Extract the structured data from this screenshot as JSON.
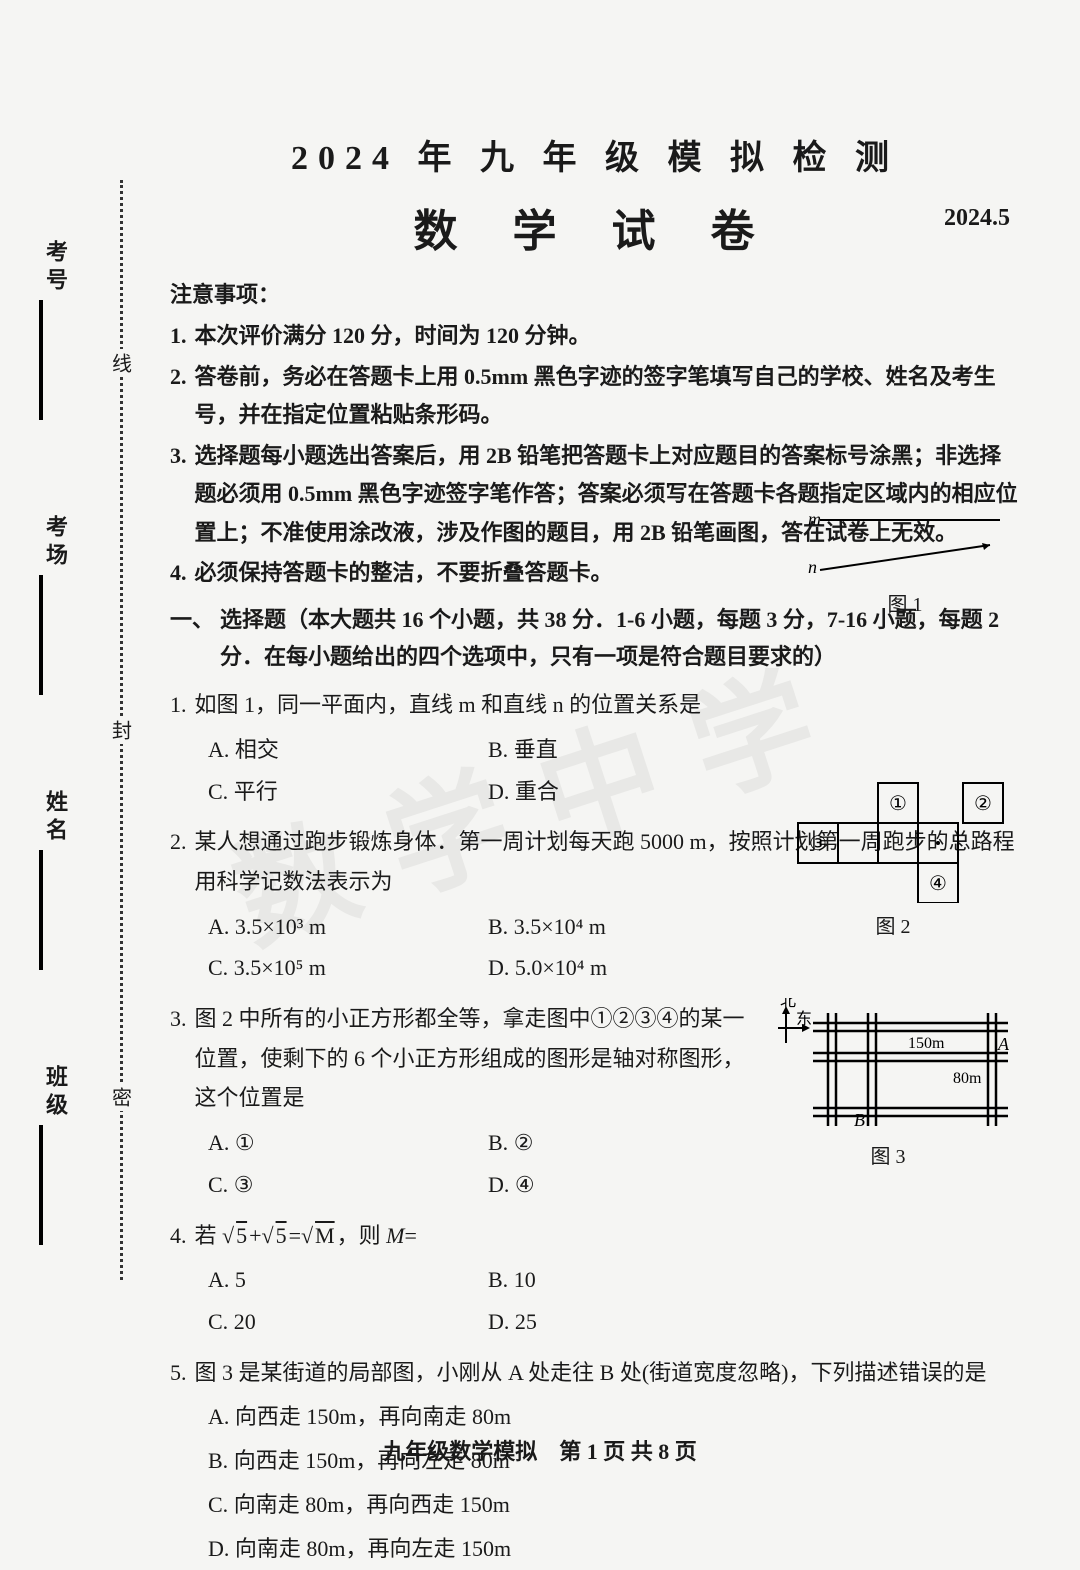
{
  "header": {
    "title1": "2024 年 九 年 级 模 拟 检 测",
    "title2": "数 学 试 卷",
    "date": "2024.5"
  },
  "margin": {
    "labels": [
      "班级",
      "姓名",
      "考场",
      "考号"
    ],
    "markers": [
      "密",
      "封",
      "线"
    ]
  },
  "notice": {
    "heading": "注意事项：",
    "items": [
      {
        "n": "1.",
        "t": "本次评价满分 120 分，时间为 120 分钟。"
      },
      {
        "n": "2.",
        "t": "答卷前，务必在答题卡上用 0.5mm 黑色字迹的签字笔填写自己的学校、姓名及考生号，并在指定位置粘贴条形码。"
      },
      {
        "n": "3.",
        "t": "选择题每小题选出答案后，用 2B 铅笔把答题卡上对应题目的答案标号涂黑；非选择题必须用 0.5mm 黑色字迹签字笔作答；答案必须写在答题卡各题指定区域内的相应位置上；不准使用涂改液，涉及作图的题目，用 2B 铅笔画图，答在试卷上无效。"
      },
      {
        "n": "4.",
        "t": "必须保持答题卡的整洁，不要折叠答题卡。"
      }
    ]
  },
  "section1": {
    "label": "一、",
    "text": "选择题（本大题共 16 个小题，共 38 分．1-6 小题，每题 3 分，7-16 小题，每题 2 分．在每小题给出的四个选项中，只有一项是符合题目要求的）"
  },
  "questions": [
    {
      "n": "1.",
      "stem": "如图 1，同一平面内，直线 m 和直线 n 的位置关系是",
      "opts": [
        {
          "k": "A.",
          "v": "相交"
        },
        {
          "k": "B.",
          "v": "垂直"
        },
        {
          "k": "C.",
          "v": "平行"
        },
        {
          "k": "D.",
          "v": "重合"
        }
      ],
      "layout": "2col"
    },
    {
      "n": "2.",
      "stem": "某人想通过跑步锻炼身体．第一周计划每天跑 5000 m，按照计划第一周跑步的总路程用科学记数法表示为",
      "opts": [
        {
          "k": "A.",
          "v": "3.5×10³ m"
        },
        {
          "k": "B.",
          "v": "3.5×10⁴ m"
        },
        {
          "k": "C.",
          "v": "3.5×10⁵ m"
        },
        {
          "k": "D.",
          "v": "5.0×10⁴ m"
        }
      ],
      "layout": "2col"
    },
    {
      "n": "3.",
      "stem": "图 2 中所有的小正方形都全等，拿走图中①②③④的某一位置，使剩下的 6 个小正方形组成的图形是轴对称图形，这个位置是",
      "opts": [
        {
          "k": "A.",
          "v": "①"
        },
        {
          "k": "B.",
          "v": "②"
        },
        {
          "k": "C.",
          "v": "③"
        },
        {
          "k": "D.",
          "v": "④"
        }
      ],
      "layout": "2col"
    },
    {
      "n": "4.",
      "stem_html": "若 √<span class='sqrt'>5</span>+√<span class='sqrt'>5</span>=√<span class='sqrt'>M</span>，则 <i>M</i>=",
      "opts": [
        {
          "k": "A.",
          "v": "5"
        },
        {
          "k": "B.",
          "v": "10"
        },
        {
          "k": "C.",
          "v": "20"
        },
        {
          "k": "D.",
          "v": "25"
        }
      ],
      "layout": "2col"
    },
    {
      "n": "5.",
      "stem": "图 3 是某街道的局部图，小刚从 A 处走往 B 处(街道宽度忽略)，下列描述错误的是",
      "opts": [
        {
          "k": "A.",
          "v": "向西走 150m，再向南走 80m"
        },
        {
          "k": "B.",
          "v": "向西走 150m，再向左走 80m"
        },
        {
          "k": "C.",
          "v": "向南走 80m，再向西走 150m"
        },
        {
          "k": "D.",
          "v": "向南走 80m，再向左走 150m"
        }
      ],
      "layout": "1col"
    }
  ],
  "figures": {
    "fig1": {
      "label": "图 1",
      "m": "m",
      "n": "n"
    },
    "fig2": {
      "label": "图 2",
      "marks": [
        "①",
        "②",
        "③",
        "④"
      ]
    },
    "fig3": {
      "label": "图 3",
      "north": "北",
      "east": "东",
      "A": "A",
      "B": "B",
      "d1": "150m",
      "d2": "80m"
    }
  },
  "watermark": "数学中学",
  "footer": "九年级数学模拟　第 1 页 共 8 页"
}
